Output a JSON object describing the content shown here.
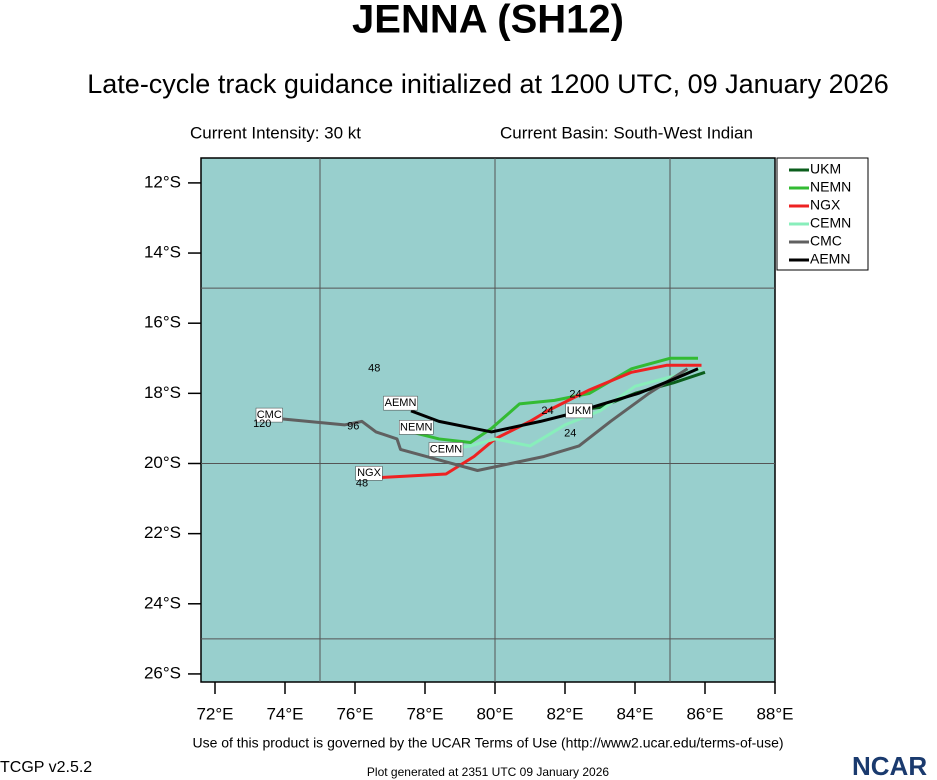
{
  "chart_data": {
    "type": "line",
    "title": "JENNA (SH12)",
    "subtitle": "Late-cycle track guidance initialized at 1200 UTC, 09 January 2026",
    "info_left": "Current Intensity: 30 kt",
    "info_right": "Current Basin: South-West Indian",
    "footer": "Use of this product is governed by the UCAR Terms of Use (http://www2.ucar.edu/terms-of-use)",
    "version": "TCGP v2.5.2",
    "generated": "Plot generated at 2351 UTC  09 January 2026",
    "logo": "NCAR",
    "background": "#98cfcd",
    "xlim": [
      71.6,
      88
    ],
    "ylim": [
      -26.23,
      -11.29
    ],
    "xticks": [
      {
        "value": 72,
        "label": "72°E"
      },
      {
        "value": 74,
        "label": "74°E"
      },
      {
        "value": 76,
        "label": "76°E"
      },
      {
        "value": 78,
        "label": "78°E"
      },
      {
        "value": 80,
        "label": "80°E"
      },
      {
        "value": 82,
        "label": "82°E"
      },
      {
        "value": 84,
        "label": "84°E"
      },
      {
        "value": 86,
        "label": "86°E"
      },
      {
        "value": 88,
        "label": "88°E"
      }
    ],
    "yticks": [
      {
        "value": -12,
        "label": "12°S"
      },
      {
        "value": -14,
        "label": "14°S"
      },
      {
        "value": -16,
        "label": "16°S"
      },
      {
        "value": -18,
        "label": "18°S"
      },
      {
        "value": -20,
        "label": "20°S"
      },
      {
        "value": -22,
        "label": "22°S"
      },
      {
        "value": -24,
        "label": "24°S"
      },
      {
        "value": -26,
        "label": "26°S"
      }
    ],
    "grid_x": [
      75,
      80,
      85
    ],
    "grid_y": [
      -15,
      -20,
      -25
    ],
    "legend": "upper right",
    "series": [
      {
        "name": "UKM",
        "color": "#0b5e1c",
        "x": [
          86.0,
          85.1,
          84.0,
          83.0,
          82.2
        ],
        "values": [
          -17.4,
          -17.7,
          -18.0,
          -18.4,
          -18.5
        ]
      },
      {
        "name": "NEMN",
        "color": "#33bb33",
        "x": [
          85.8,
          85.0,
          83.9,
          82.7,
          81.7,
          80.7,
          79.9,
          79.3,
          78.4,
          77.6
        ],
        "values": [
          -17.0,
          -17.0,
          -17.3,
          -18.0,
          -18.2,
          -18.3,
          -19.0,
          -19.4,
          -19.3,
          -19.1
        ]
      },
      {
        "name": "NGX",
        "color": "#ee2222",
        "x": [
          85.9,
          84.9,
          83.9,
          82.7,
          81.5,
          81.0,
          80.0,
          79.4,
          78.6,
          76.7
        ],
        "values": [
          -17.2,
          -17.2,
          -17.4,
          -17.9,
          -18.5,
          -18.8,
          -19.3,
          -19.8,
          -20.3,
          -20.4
        ]
      },
      {
        "name": "CEMN",
        "color": "#88eebb",
        "x": [
          85.9,
          84.0,
          83.0,
          82.0,
          81.0,
          80.0,
          79.3,
          78.6
        ],
        "values": [
          -17.3,
          -17.8,
          -18.5,
          -18.9,
          -19.5,
          -19.3,
          -19.5,
          -19.6
        ]
      },
      {
        "name": "CMC",
        "color": "#606060",
        "x": [
          85.5,
          84.4,
          83.3,
          82.4,
          81.4,
          79.5,
          78.4,
          77.3,
          77.2,
          76.6,
          76.2,
          75.7,
          73.6
        ],
        "values": [
          -17.3,
          -18.0,
          -18.8,
          -19.5,
          -19.8,
          -20.2,
          -19.9,
          -19.6,
          -19.3,
          -19.1,
          -18.8,
          -18.9,
          -18.7
        ]
      },
      {
        "name": "AEMN",
        "color": "#000000",
        "x": [
          85.8,
          85.1,
          84.1,
          83.1,
          82.1,
          81.3,
          79.9,
          78.4,
          77.6
        ],
        "values": [
          -17.3,
          -17.6,
          -18.0,
          -18.3,
          -18.6,
          -18.8,
          -19.1,
          -18.8,
          -18.5
        ]
      }
    ],
    "annotations": [
      {
        "text": "CMC",
        "x": 73.55,
        "y": -18.62,
        "boxed": true
      },
      {
        "text": "120",
        "x": 73.35,
        "y": -18.88
      },
      {
        "text": "96",
        "x": 75.95,
        "y": -18.95
      },
      {
        "text": "48",
        "x": 76.55,
        "y": -17.3
      },
      {
        "text": "AEMN",
        "x": 77.3,
        "y": -18.28,
        "boxed": true
      },
      {
        "text": "NEMN",
        "x": 77.75,
        "y": -18.97,
        "boxed": true
      },
      {
        "text": "CEMN",
        "x": 78.6,
        "y": -19.6,
        "boxed": true
      },
      {
        "text": "NGX",
        "x": 76.4,
        "y": -20.28,
        "boxed": true
      },
      {
        "text": "48",
        "x": 76.2,
        "y": -20.57
      },
      {
        "text": "UKM",
        "x": 82.4,
        "y": -18.5,
        "boxed": true
      },
      {
        "text": "24",
        "x": 82.3,
        "y": -18.03
      },
      {
        "text": "24",
        "x": 81.5,
        "y": -18.5
      },
      {
        "text": "24",
        "x": 82.15,
        "y": -19.15
      }
    ]
  }
}
